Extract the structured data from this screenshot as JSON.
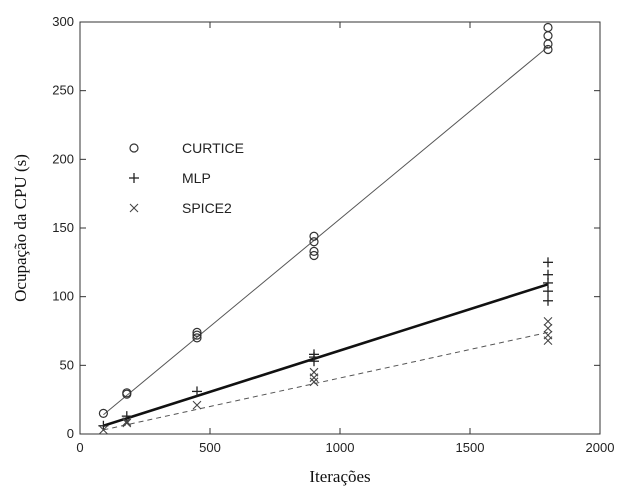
{
  "chart_data": {
    "type": "scatter",
    "xlabel": "Iterações",
    "ylabel": "Ocupação da CPU (s)",
    "xlim": [
      0,
      2000
    ],
    "ylim": [
      0,
      300
    ],
    "xticks": [
      0,
      500,
      1000,
      1500,
      2000
    ],
    "yticks": [
      0,
      50,
      100,
      150,
      200,
      250,
      300
    ],
    "grid": false,
    "legend_placement": "upper-left",
    "series": [
      {
        "name": "CURTICE",
        "marker": "circle",
        "points": [
          [
            90,
            15
          ],
          [
            180,
            29
          ],
          [
            180,
            30
          ],
          [
            450,
            70
          ],
          [
            450,
            72
          ],
          [
            450,
            74
          ],
          [
            900,
            130
          ],
          [
            900,
            133
          ],
          [
            900,
            140
          ],
          [
            900,
            144
          ],
          [
            1800,
            280
          ],
          [
            1800,
            284
          ],
          [
            1800,
            290
          ],
          [
            1800,
            296
          ]
        ],
        "fit_line": [
          [
            90,
            14
          ],
          [
            1800,
            282
          ]
        ],
        "line_style": "thin-solid"
      },
      {
        "name": "MLP",
        "marker": "plus",
        "points": [
          [
            90,
            6
          ],
          [
            180,
            13
          ],
          [
            450,
            31
          ],
          [
            900,
            53
          ],
          [
            900,
            56
          ],
          [
            900,
            58
          ],
          [
            1800,
            97
          ],
          [
            1800,
            104
          ],
          [
            1800,
            110
          ],
          [
            1800,
            116
          ],
          [
            1800,
            125
          ]
        ],
        "fit_line": [
          [
            90,
            6
          ],
          [
            1800,
            109
          ]
        ],
        "line_style": "thick-solid"
      },
      {
        "name": "SPICE2",
        "marker": "x",
        "points": [
          [
            90,
            3
          ],
          [
            180,
            8
          ],
          [
            180,
            9
          ],
          [
            450,
            21
          ],
          [
            900,
            38
          ],
          [
            900,
            41
          ],
          [
            900,
            45
          ],
          [
            1800,
            68
          ],
          [
            1800,
            72
          ],
          [
            1800,
            77
          ],
          [
            1800,
            82
          ]
        ],
        "fit_line": [
          [
            90,
            3
          ],
          [
            1800,
            74
          ]
        ],
        "line_style": "dashed"
      }
    ]
  }
}
